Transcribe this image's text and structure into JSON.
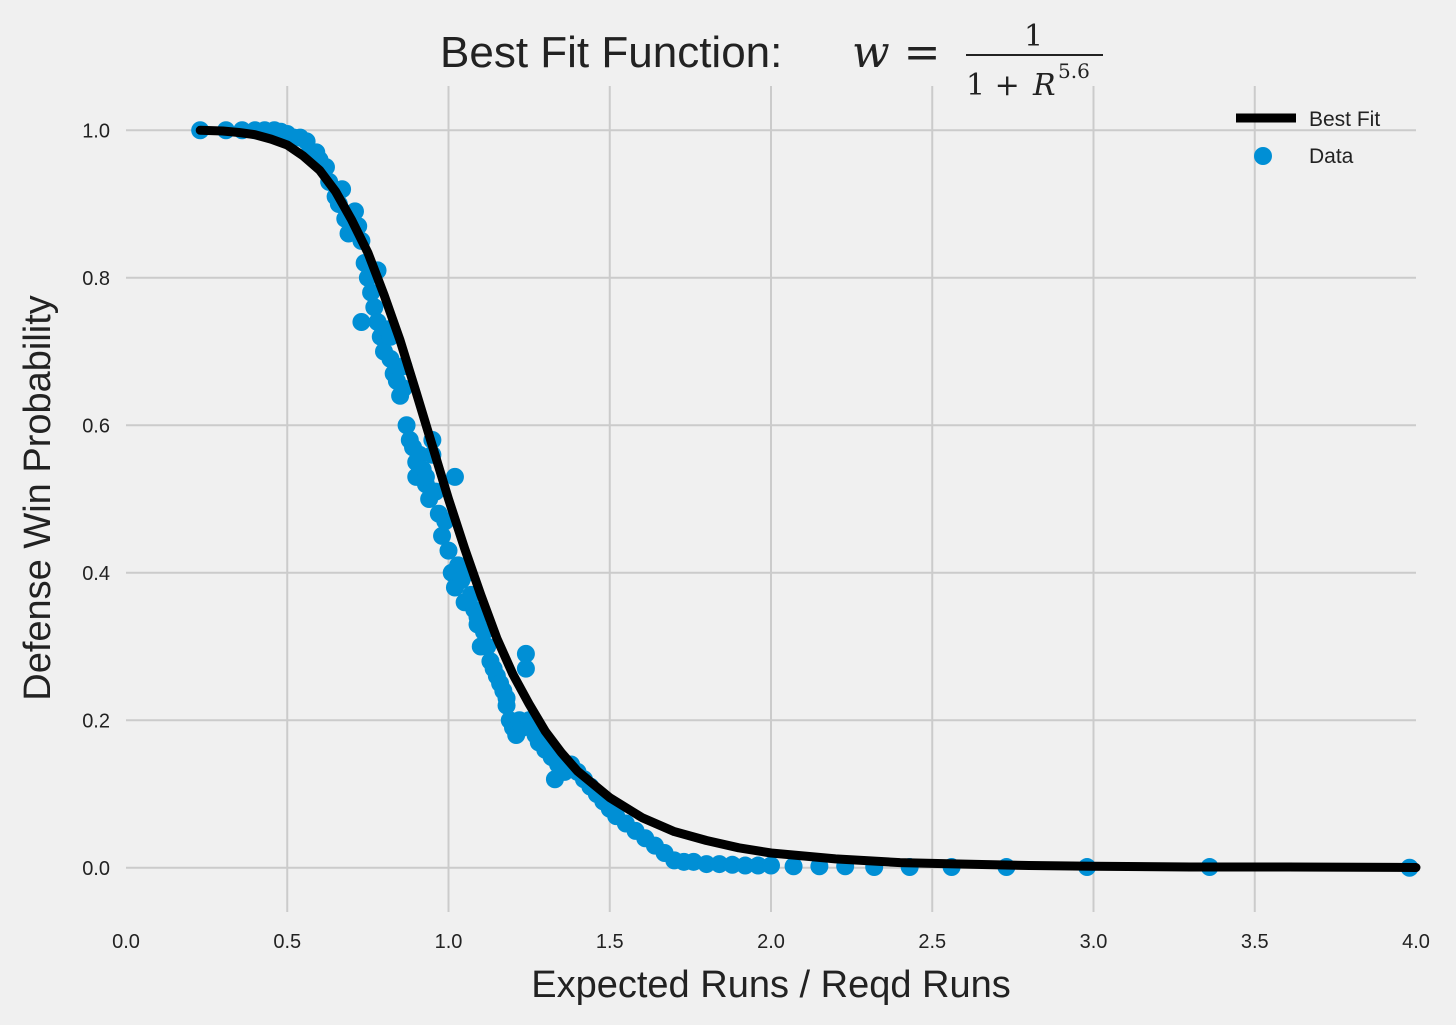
{
  "chart_data": {
    "type": "scatter",
    "title": "Best Fit Function: ",
    "title_formula": {
      "lhs": "w =",
      "numerator": "1",
      "denominator": "1 + ",
      "denominator_var": "R",
      "exponent": "5.6"
    },
    "xlabel": "Expected Runs / Reqd Runs",
    "ylabel": "Defense Win Probability",
    "xlim": [
      0.0,
      4.0
    ],
    "ylim": [
      -0.06,
      1.06
    ],
    "grid": true,
    "legend_position": "top-right",
    "x_ticks": [
      "0.0",
      "0.5",
      "1.0",
      "1.5",
      "2.0",
      "2.5",
      "3.0",
      "3.5",
      "4.0"
    ],
    "y_ticks": [
      "0.0",
      "0.2",
      "0.4",
      "0.6",
      "0.8",
      "1.0"
    ],
    "colors": {
      "data": "#008fd5",
      "fit": "#000000",
      "grid": "#cbcbcb",
      "background": "#f0f0f0"
    },
    "series": [
      {
        "name": "Best Fit",
        "kind": "line",
        "exponent": 5.6,
        "x": [
          0.23,
          0.3,
          0.35,
          0.4,
          0.45,
          0.5,
          0.55,
          0.6,
          0.65,
          0.7,
          0.75,
          0.8,
          0.85,
          0.9,
          0.95,
          1.0,
          1.05,
          1.1,
          1.15,
          1.2,
          1.25,
          1.3,
          1.35,
          1.4,
          1.5,
          1.6,
          1.7,
          1.8,
          1.9,
          2.0,
          2.2,
          2.4,
          2.6,
          2.8,
          3.0,
          3.3,
          3.6,
          4.0
        ],
        "y": [
          1.0,
          0.999,
          0.997,
          0.994,
          0.988,
          0.98,
          0.965,
          0.946,
          0.917,
          0.878,
          0.834,
          0.777,
          0.715,
          0.644,
          0.572,
          0.5,
          0.433,
          0.37,
          0.311,
          0.262,
          0.222,
          0.185,
          0.156,
          0.131,
          0.095,
          0.068,
          0.049,
          0.037,
          0.027,
          0.02,
          0.012,
          0.007,
          0.005,
          0.003,
          0.002,
          0.001,
          0.001,
          0.0004
        ]
      },
      {
        "name": "Data",
        "kind": "scatter",
        "x": [
          0.23,
          0.31,
          0.36,
          0.4,
          0.43,
          0.46,
          0.48,
          0.5,
          0.52,
          0.54,
          0.56,
          0.57,
          0.59,
          0.6,
          0.62,
          0.63,
          0.65,
          0.66,
          0.68,
          0.69,
          0.71,
          0.72,
          0.73,
          0.74,
          0.75,
          0.76,
          0.77,
          0.78,
          0.79,
          0.8,
          0.81,
          0.82,
          0.83,
          0.84,
          0.85,
          0.86,
          0.87,
          0.88,
          0.89,
          0.9,
          0.9,
          0.91,
          0.92,
          0.93,
          0.94,
          0.95,
          0.96,
          0.97,
          0.98,
          0.99,
          1.0,
          1.01,
          1.02,
          1.03,
          1.04,
          1.05,
          1.06,
          1.07,
          1.08,
          1.09,
          1.1,
          1.11,
          1.12,
          1.13,
          1.14,
          1.15,
          1.16,
          1.17,
          1.18,
          1.19,
          1.2,
          1.21,
          1.22,
          1.23,
          1.24,
          1.25,
          1.26,
          1.27,
          1.28,
          1.3,
          1.32,
          1.34,
          1.36,
          1.38,
          1.4,
          1.42,
          1.44,
          1.46,
          1.48,
          1.5,
          1.52,
          1.55,
          1.58,
          1.61,
          1.64,
          1.67,
          1.7,
          1.73,
          1.76,
          1.8,
          1.84,
          1.88,
          1.92,
          1.96,
          2.0,
          2.07,
          2.15,
          2.23,
          2.32,
          2.43,
          2.56,
          2.73,
          2.98,
          3.36,
          3.98,
          0.78,
          0.82,
          0.86,
          0.95,
          1.02,
          1.18,
          1.24,
          0.73,
          0.67,
          0.93,
          1.09,
          1.33
        ],
        "y": [
          1.0,
          1.0,
          1.0,
          1.0,
          1.0,
          1.0,
          0.998,
          0.995,
          0.99,
          0.99,
          0.985,
          0.97,
          0.97,
          0.96,
          0.95,
          0.93,
          0.91,
          0.9,
          0.88,
          0.86,
          0.89,
          0.87,
          0.85,
          0.82,
          0.8,
          0.78,
          0.76,
          0.74,
          0.72,
          0.7,
          0.73,
          0.69,
          0.67,
          0.66,
          0.64,
          0.65,
          0.6,
          0.58,
          0.57,
          0.55,
          0.53,
          0.56,
          0.54,
          0.52,
          0.5,
          0.56,
          0.51,
          0.48,
          0.45,
          0.47,
          0.43,
          0.4,
          0.38,
          0.41,
          0.39,
          0.36,
          0.4,
          0.37,
          0.35,
          0.33,
          0.3,
          0.32,
          0.3,
          0.28,
          0.27,
          0.26,
          0.25,
          0.24,
          0.23,
          0.2,
          0.19,
          0.18,
          0.2,
          0.19,
          0.29,
          0.2,
          0.19,
          0.18,
          0.17,
          0.16,
          0.15,
          0.14,
          0.13,
          0.14,
          0.13,
          0.12,
          0.11,
          0.1,
          0.09,
          0.08,
          0.07,
          0.06,
          0.05,
          0.04,
          0.03,
          0.02,
          0.01,
          0.008,
          0.008,
          0.005,
          0.005,
          0.004,
          0.003,
          0.003,
          0.003,
          0.002,
          0.002,
          0.002,
          0.001,
          0.001,
          0.001,
          0.001,
          0.001,
          0.001,
          0.0,
          0.81,
          0.72,
          0.68,
          0.58,
          0.53,
          0.22,
          0.27,
          0.74,
          0.92,
          0.53,
          0.34,
          0.12
        ]
      }
    ]
  }
}
